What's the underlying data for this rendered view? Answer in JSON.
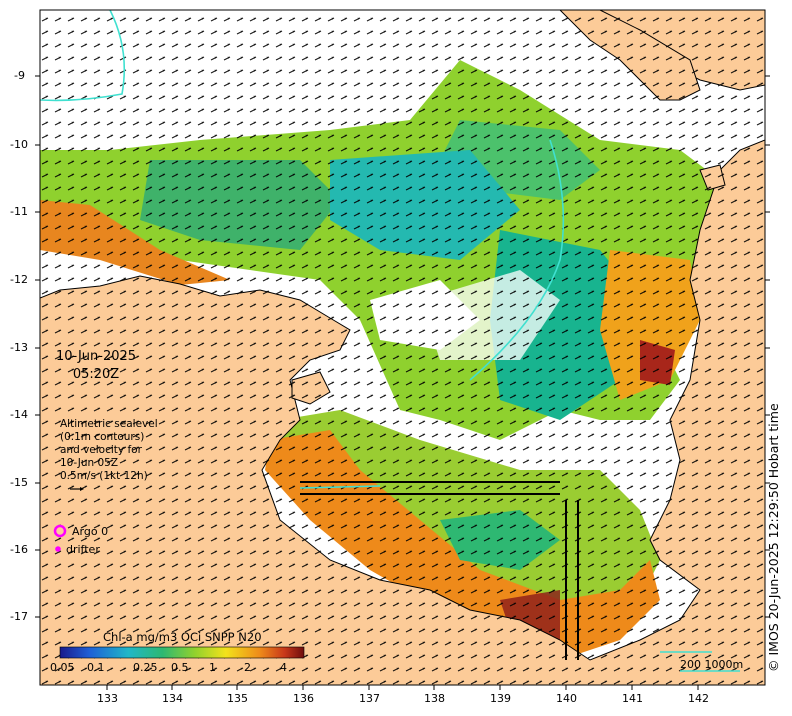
{
  "map": {
    "product": "Chl-a mg/m3 OCi SNPP N20",
    "date_line1": "10-Jun-2025",
    "date_line2": "05:20Z",
    "legend_lines": [
      "Altimetric sealevel",
      "(0.1m contours)",
      "and velocity for",
      "10-Jun 05Z",
      "0.5m/s (1kt 12h)"
    ],
    "argo_label": "Argo 0",
    "drifter_label": "drifter",
    "scale_label": "200  1000m",
    "credit": "© IMOS 20-Jun-2025 12:29:50 Hobart time",
    "lon_ticks": [
      "133",
      "134",
      "135",
      "136",
      "137",
      "138",
      "139",
      "140",
      "141",
      "142"
    ],
    "lat_ticks": [
      "-9",
      "-10",
      "-11",
      "-12",
      "-13",
      "-14",
      "-15",
      "-16",
      "-17"
    ],
    "colorbar_ticks": [
      "0.05",
      "0.1",
      "0.25",
      "0.5",
      "1",
      "2",
      "4"
    ],
    "colors": {
      "land": "#fccb98",
      "chl_low": "#1fb7a6",
      "chl_mid": "#9acd32",
      "chl_high": "#e8861f",
      "chl_max": "#8b1a1a",
      "argo": "#ff00ff",
      "contour": "#40e0d0"
    }
  }
}
